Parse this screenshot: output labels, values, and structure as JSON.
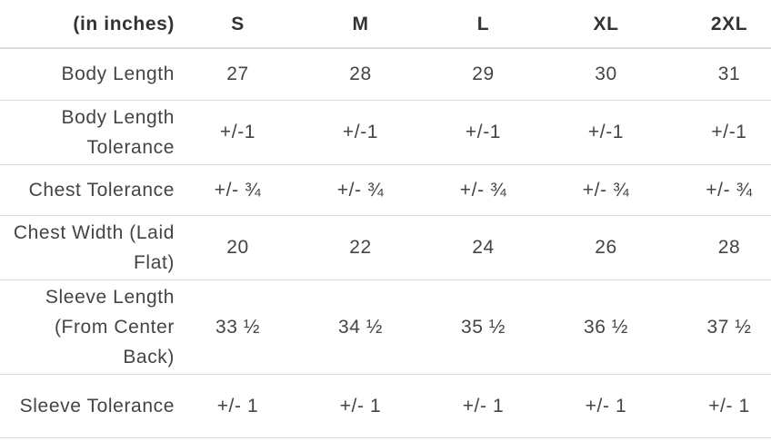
{
  "table": {
    "header": [
      "(in inches)",
      "S",
      "M",
      "L",
      "XL",
      "2XL"
    ],
    "rows": [
      [
        "Body Length",
        "27",
        "28",
        "29",
        "30",
        "31"
      ],
      [
        "Body Length Tolerance",
        "+/-1",
        "+/-1",
        "+/-1",
        "+/-1",
        "+/-1"
      ],
      [
        "Chest Tolerance",
        "+/- ¾",
        "+/- ¾",
        "+/- ¾",
        "+/- ¾",
        "+/- ¾"
      ],
      [
        "Chest Width (Laid Flat)",
        "20",
        "22",
        "24",
        "26",
        "28"
      ],
      [
        "Sleeve Length (From Center Back)",
        "33 ½",
        "34 ½",
        "35 ½",
        "36 ½",
        "37 ½"
      ],
      [
        "Sleeve Tolerance",
        "+/- 1",
        "+/- 1",
        "+/- 1",
        "+/- 1",
        "+/- 1"
      ]
    ]
  }
}
